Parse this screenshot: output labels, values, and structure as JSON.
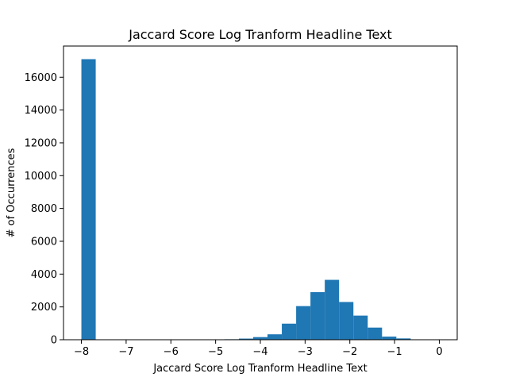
{
  "chart_data": {
    "type": "bar",
    "title": "Jaccard Score Log Tranform Headline Text",
    "xlabel": "Jaccard Score Log Tranform Headline Text",
    "ylabel": "# of Occurrences",
    "xlim": [
      -8.4,
      0.4
    ],
    "ylim": [
      0,
      17900
    ],
    "x_ticks": [
      -8,
      -7,
      -6,
      -5,
      -4,
      -3,
      -2,
      -1,
      0
    ],
    "x_tick_labels": [
      "−8",
      "−7",
      "−6",
      "−5",
      "−4",
      "−3",
      "−2",
      "−1",
      "0"
    ],
    "y_ticks": [
      0,
      2000,
      4000,
      6000,
      8000,
      10000,
      12000,
      14000,
      16000
    ],
    "y_tick_labels": [
      "0",
      "2000",
      "4000",
      "6000",
      "8000",
      "10000",
      "12000",
      "14000",
      "16000"
    ],
    "grid": false,
    "bar_color": "#1f77b4",
    "bins": [
      {
        "x0": -8.0,
        "x1": -7.68,
        "value": 17100
      },
      {
        "x0": -7.68,
        "x1": -7.36,
        "value": 0
      },
      {
        "x0": -7.36,
        "x1": -7.04,
        "value": 0
      },
      {
        "x0": -7.04,
        "x1": -6.72,
        "value": 0
      },
      {
        "x0": -6.72,
        "x1": -6.4,
        "value": 0
      },
      {
        "x0": -6.4,
        "x1": -6.08,
        "value": 0
      },
      {
        "x0": -6.08,
        "x1": -5.76,
        "value": 0
      },
      {
        "x0": -5.76,
        "x1": -5.44,
        "value": 0
      },
      {
        "x0": -5.44,
        "x1": -5.12,
        "value": 0
      },
      {
        "x0": -5.12,
        "x1": -4.8,
        "value": 0
      },
      {
        "x0": -4.8,
        "x1": -4.48,
        "value": 30
      },
      {
        "x0": -4.48,
        "x1": -4.16,
        "value": 70
      },
      {
        "x0": -4.16,
        "x1": -3.84,
        "value": 160
      },
      {
        "x0": -3.84,
        "x1": -3.52,
        "value": 330
      },
      {
        "x0": -3.52,
        "x1": -3.2,
        "value": 980
      },
      {
        "x0": -3.2,
        "x1": -2.88,
        "value": 2050
      },
      {
        "x0": -2.88,
        "x1": -2.56,
        "value": 2900
      },
      {
        "x0": -2.56,
        "x1": -2.24,
        "value": 3650
      },
      {
        "x0": -2.24,
        "x1": -1.92,
        "value": 2300
      },
      {
        "x0": -1.92,
        "x1": -1.6,
        "value": 1470
      },
      {
        "x0": -1.6,
        "x1": -1.28,
        "value": 740
      },
      {
        "x0": -1.28,
        "x1": -0.96,
        "value": 190
      },
      {
        "x0": -0.96,
        "x1": -0.64,
        "value": 80
      },
      {
        "x0": -0.64,
        "x1": -0.32,
        "value": 10
      },
      {
        "x0": -0.32,
        "x1": 0.0,
        "value": 5
      }
    ]
  }
}
